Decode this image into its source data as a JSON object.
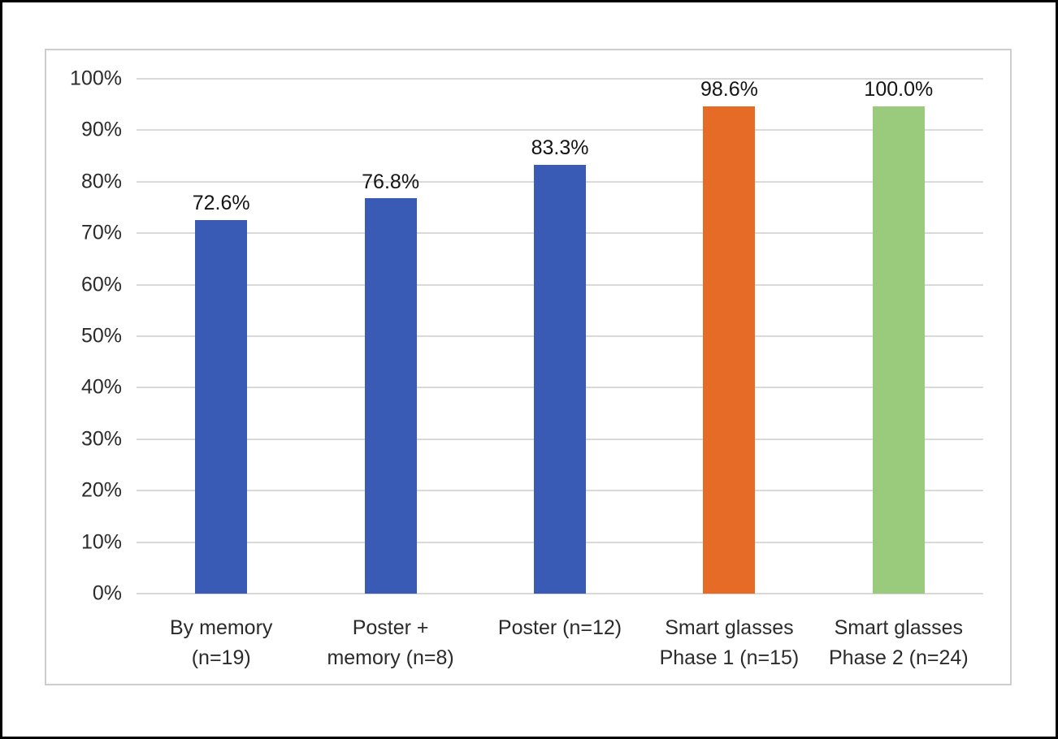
{
  "chart_data": {
    "type": "bar",
    "title": "",
    "xlabel": "",
    "ylabel": "",
    "categories": [
      "By memory\n(n=19)",
      "Poster +\nmemory (n=8)",
      "Poster (n=12)",
      "Smart glasses\nPhase 1 (n=15)",
      "Smart glasses\nPhase 2 (n=24)"
    ],
    "values": [
      72.6,
      76.8,
      83.3,
      98.6,
      100.0
    ],
    "data_labels": [
      "72.6%",
      "76.8%",
      "83.3%",
      "98.6%",
      "100.0%"
    ],
    "bar_colors": [
      "#3A5BB5",
      "#3A5BB5",
      "#3A5BB5",
      "#E66B26",
      "#9ACB7C"
    ],
    "ylim": [
      0,
      100
    ],
    "yticks": [
      {
        "value": 0,
        "label": "0%"
      },
      {
        "value": 10,
        "label": "10%"
      },
      {
        "value": 20,
        "label": "20%"
      },
      {
        "value": 30,
        "label": "30%"
      },
      {
        "value": 40,
        "label": "40%"
      },
      {
        "value": 50,
        "label": "50%"
      },
      {
        "value": 60,
        "label": "60%"
      },
      {
        "value": 70,
        "label": "70%"
      },
      {
        "value": 80,
        "label": "80%"
      },
      {
        "value": 90,
        "label": "90%"
      },
      {
        "value": 100,
        "label": "100%"
      }
    ],
    "grid": true,
    "legend": "none",
    "colors": {
      "gridline": "#D9D9D9",
      "axis_text": "#2B2B2B",
      "data_label_text": "#141414",
      "plot_border": "#CDCDCD",
      "page_border": "#000000",
      "background": "#FFFFFF"
    }
  }
}
